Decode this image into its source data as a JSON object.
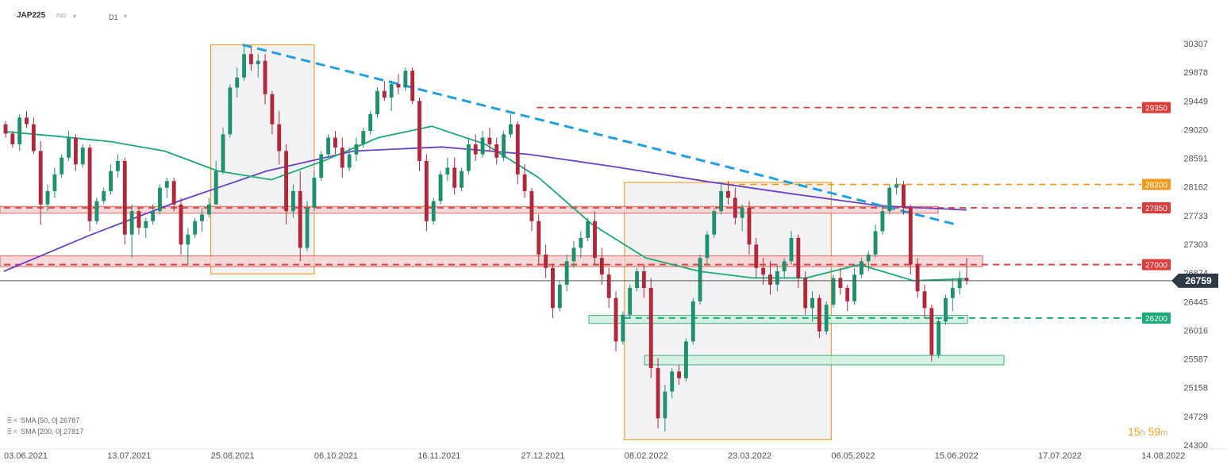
{
  "header": {
    "symbol": "JAP225",
    "type": "IND",
    "timeframe": "D1"
  },
  "indicators": [
    {
      "label": "SMA",
      "params": "[50, 0]",
      "value": "26787",
      "color": "#1aaa78"
    },
    {
      "label": "SMA",
      "params": "[200, 0]",
      "value": "27817",
      "color": "#6a42c8"
    }
  ],
  "timer": {
    "hours": "15",
    "h": "h",
    "minutes": "59",
    "m": "m"
  },
  "chart_data": {
    "type": "candlestick",
    "y_ticks": [
      30307,
      29878,
      29449,
      29020,
      28591,
      28162,
      27733,
      27303,
      26874,
      26445,
      26016,
      25587,
      25158,
      24729,
      24300
    ],
    "ylim": [
      24300,
      30307
    ],
    "x_ticks": [
      "03.06.2021",
      "13.07.2021",
      "25.08.2021",
      "06.10.2021",
      "16.11.2021",
      "27.12.2021",
      "08.02.2022",
      "23.03.2022",
      "06.05.2022",
      "15.06.2022",
      "17.07.2022",
      "14.08.2022"
    ],
    "current_price": {
      "value": 26759,
      "label": "26759",
      "color": "#2f3a48"
    },
    "levels": [
      {
        "label": "29350",
        "value": 29350,
        "color": "#e03a3a",
        "start": "27.12.2021"
      },
      {
        "label": "28200",
        "value": 28200,
        "color": "#f49a1a",
        "start": "23.03.2022"
      },
      {
        "label": "27850",
        "value": 27850,
        "color": "#e03a3a",
        "start": "03.06.2021"
      },
      {
        "label": "27000",
        "value": 27000,
        "color": "#e03a3a",
        "start": "03.06.2021"
      },
      {
        "label": "26200",
        "value": 26200,
        "color": "#1aaa78",
        "start": "08.02.2022"
      }
    ],
    "zones": [
      {
        "kind": "resistance",
        "from": 27770,
        "to": 27870
      },
      {
        "kind": "resistance",
        "from": 26970,
        "to": 27130
      },
      {
        "kind": "support",
        "from": 26120,
        "to": 26240
      },
      {
        "kind": "support",
        "from": 25500,
        "to": 25640
      }
    ],
    "trendline": {
      "color": "#20a0e0",
      "from": [
        "25.08.2021",
        30290
      ],
      "to": [
        "15.06.2022",
        27590
      ]
    },
    "highlight_periods": [
      {
        "from": "25.08.2021",
        "to": "06.10.2021",
        "high": 30290,
        "low": 26860
      },
      {
        "from": "08.02.2022",
        "to": "06.05.2022",
        "high": 28230,
        "low": 24380
      }
    ],
    "sma50": [
      28990,
      28920,
      28840,
      28700,
      28400,
      28270,
      28560,
      28900,
      29070,
      28800,
      28300,
      27600,
      27100,
      26900,
      26800,
      26800,
      27000,
      26760,
      26787
    ],
    "sma200": [
      26900,
      27450,
      27950,
      28400,
      28700,
      28760,
      28650,
      28460,
      28250,
      28060,
      27880,
      27817
    ],
    "candles": [
      [
        29100,
        29150,
        28900,
        28960
      ],
      [
        28960,
        29000,
        28750,
        28800
      ],
      [
        28800,
        29250,
        28700,
        29200
      ],
      [
        29200,
        29300,
        29050,
        29100
      ],
      [
        29100,
        29200,
        28650,
        28700
      ],
      [
        28700,
        28850,
        27600,
        27900
      ],
      [
        27900,
        28200,
        27800,
        28100
      ],
      [
        28100,
        28450,
        28000,
        28350
      ],
      [
        28350,
        28650,
        28300,
        28600
      ],
      [
        28600,
        29000,
        28550,
        28900
      ],
      [
        28900,
        28950,
        28400,
        28500
      ],
      [
        28500,
        28800,
        28450,
        28750
      ],
      [
        28750,
        28800,
        27500,
        27650
      ],
      [
        27650,
        28000,
        27600,
        27950
      ],
      [
        27950,
        28150,
        27900,
        28100
      ],
      [
        28100,
        28500,
        28050,
        28400
      ],
      [
        28400,
        28650,
        28300,
        28550
      ],
      [
        28550,
        28600,
        27300,
        27450
      ],
      [
        27450,
        27900,
        27100,
        27800
      ],
      [
        27800,
        27850,
        27450,
        27550
      ],
      [
        27550,
        27700,
        27400,
        27650
      ],
      [
        27650,
        27900,
        27600,
        27800
      ],
      [
        27800,
        28200,
        27750,
        28150
      ],
      [
        28150,
        28300,
        28000,
        28250
      ],
      [
        28250,
        28300,
        27800,
        27900
      ],
      [
        27900,
        28000,
        27150,
        27300
      ],
      [
        27300,
        27550,
        27000,
        27450
      ],
      [
        27450,
        27700,
        27400,
        27650
      ],
      [
        27650,
        27850,
        27500,
        27750
      ],
      [
        27750,
        28000,
        27700,
        27900
      ],
      [
        27900,
        28550,
        27900,
        28400
      ],
      [
        28400,
        29050,
        28350,
        28950
      ],
      [
        28950,
        29700,
        28900,
        29650
      ],
      [
        29650,
        29950,
        29500,
        29800
      ],
      [
        29800,
        30300,
        29750,
        30150
      ],
      [
        30150,
        30250,
        29900,
        30000
      ],
      [
        30000,
        30150,
        29800,
        30050
      ],
      [
        30050,
        30150,
        29400,
        29550
      ],
      [
        29550,
        29600,
        28950,
        29100
      ],
      [
        29100,
        29300,
        28500,
        28700
      ],
      [
        28700,
        28800,
        27600,
        27800
      ],
      [
        27800,
        28200,
        27700,
        28100
      ],
      [
        28100,
        28400,
        27050,
        27250
      ],
      [
        27250,
        27950,
        27200,
        27850
      ],
      [
        27850,
        28400,
        27800,
        28300
      ],
      [
        28300,
        28700,
        28250,
        28650
      ],
      [
        28650,
        28950,
        28600,
        28900
      ],
      [
        28900,
        29000,
        28650,
        28750
      ],
      [
        28750,
        28900,
        28300,
        28450
      ],
      [
        28450,
        28750,
        28400,
        28650
      ],
      [
        28650,
        28900,
        28550,
        28800
      ],
      [
        28800,
        29050,
        28750,
        29000
      ],
      [
        29000,
        29300,
        28950,
        29250
      ],
      [
        29250,
        29650,
        29200,
        29600
      ],
      [
        29600,
        29750,
        29450,
        29500
      ],
      [
        29500,
        29750,
        29300,
        29700
      ],
      [
        29700,
        29850,
        29550,
        29650
      ],
      [
        29650,
        29950,
        29600,
        29900
      ],
      [
        29900,
        29950,
        29400,
        29450
      ],
      [
        29450,
        29500,
        28400,
        28550
      ],
      [
        28550,
        28650,
        27500,
        27650
      ],
      [
        27650,
        28000,
        27600,
        27950
      ],
      [
        27950,
        28400,
        27900,
        28350
      ],
      [
        28350,
        28600,
        28250,
        28450
      ],
      [
        28450,
        28600,
        28050,
        28150
      ],
      [
        28150,
        28450,
        28100,
        28400
      ],
      [
        28400,
        28900,
        28350,
        28800
      ],
      [
        28800,
        28950,
        28550,
        28650
      ],
      [
        28650,
        29000,
        28600,
        28900
      ],
      [
        28900,
        29050,
        28700,
        28800
      ],
      [
        28800,
        28900,
        28500,
        28600
      ],
      [
        28600,
        29000,
        28550,
        28950
      ],
      [
        28950,
        29250,
        28900,
        29100
      ],
      [
        29100,
        29150,
        28200,
        28350
      ],
      [
        28350,
        28500,
        28000,
        28100
      ],
      [
        28100,
        28150,
        27500,
        27650
      ],
      [
        27650,
        27750,
        27000,
        27150
      ],
      [
        27150,
        27300,
        26800,
        26950
      ],
      [
        26950,
        27000,
        26200,
        26350
      ],
      [
        26350,
        26750,
        26300,
        26700
      ],
      [
        26700,
        27150,
        26600,
        27050
      ],
      [
        27050,
        27350,
        26950,
        27250
      ],
      [
        27250,
        27500,
        27100,
        27400
      ],
      [
        27400,
        27700,
        27350,
        27650
      ],
      [
        27650,
        27800,
        27000,
        27100
      ],
      [
        27100,
        27250,
        26700,
        26850
      ],
      [
        26850,
        26950,
        26350,
        26500
      ],
      [
        26500,
        26600,
        25700,
        25850
      ],
      [
        25850,
        26300,
        25800,
        26250
      ],
      [
        26250,
        26700,
        26200,
        26650
      ],
      [
        26650,
        26950,
        26600,
        26900
      ],
      [
        26900,
        27000,
        26500,
        26650
      ],
      [
        26650,
        26800,
        25300,
        25450
      ],
      [
        25450,
        25600,
        24550,
        24700
      ],
      [
        24700,
        25200,
        24500,
        25100
      ],
      [
        25100,
        25450,
        25000,
        25400
      ],
      [
        25400,
        25500,
        25200,
        25300
      ],
      [
        25300,
        25900,
        25250,
        25850
      ],
      [
        25850,
        26500,
        25800,
        26450
      ],
      [
        26450,
        27150,
        26400,
        27100
      ],
      [
        27100,
        27500,
        27000,
        27450
      ],
      [
        27450,
        27850,
        27400,
        27800
      ],
      [
        27800,
        28200,
        27750,
        28100
      ],
      [
        28100,
        28250,
        27900,
        28000
      ],
      [
        28000,
        28150,
        27600,
        27700
      ],
      [
        27700,
        27900,
        27500,
        27850
      ],
      [
        27850,
        27950,
        27150,
        27300
      ],
      [
        27300,
        27400,
        26800,
        26950
      ],
      [
        26950,
        27100,
        26700,
        26850
      ],
      [
        26850,
        27050,
        26550,
        26700
      ],
      [
        26700,
        27000,
        26600,
        26900
      ],
      [
        26900,
        27100,
        26800,
        27050
      ],
      [
        27050,
        27500,
        27000,
        27400
      ],
      [
        27400,
        27450,
        26650,
        26800
      ],
      [
        26800,
        26900,
        26250,
        26350
      ],
      [
        26350,
        26600,
        26150,
        26500
      ],
      [
        26500,
        26550,
        25900,
        26000
      ],
      [
        26000,
        26450,
        25950,
        26400
      ],
      [
        26400,
        26850,
        26350,
        26800
      ],
      [
        26800,
        26950,
        26550,
        26650
      ],
      [
        26650,
        26700,
        26300,
        26450
      ],
      [
        26450,
        26950,
        26400,
        26850
      ],
      [
        26850,
        27100,
        26800,
        27050
      ],
      [
        27050,
        27200,
        26900,
        27150
      ],
      [
        27150,
        27600,
        27100,
        27500
      ],
      [
        27500,
        27900,
        27450,
        27800
      ],
      [
        27800,
        28200,
        27750,
        28150
      ],
      [
        28150,
        28300,
        28050,
        28200
      ],
      [
        28200,
        28250,
        27750,
        27850
      ],
      [
        27850,
        27900,
        26850,
        27000
      ],
      [
        27000,
        27100,
        26500,
        26600
      ],
      [
        26600,
        26700,
        26200,
        26350
      ],
      [
        26350,
        26400,
        25550,
        25650
      ],
      [
        25650,
        26200,
        25600,
        26150
      ],
      [
        26150,
        26550,
        26100,
        26500
      ],
      [
        26500,
        26800,
        26300,
        26650
      ],
      [
        26650,
        26900,
        26550,
        26800
      ],
      [
        26800,
        27100,
        26700,
        26759
      ]
    ]
  }
}
